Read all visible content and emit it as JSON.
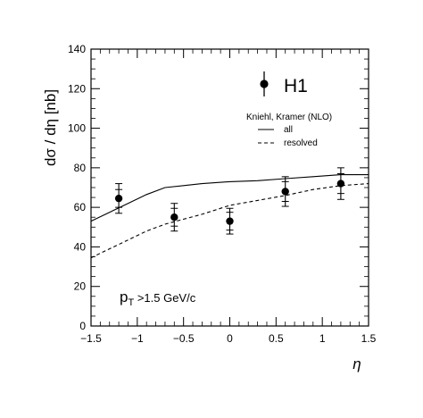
{
  "chart_data": {
    "type": "scatter",
    "xlabel": "η",
    "ylabel": "dσ / dη [nb]",
    "xlim": [
      -1.5,
      1.5
    ],
    "ylim": [
      0,
      140
    ],
    "x_ticks": [
      "−1.5",
      "−1",
      "−0.5",
      "0",
      "0.5",
      "1",
      "1.5"
    ],
    "x_tick_values": [
      -1.5,
      -1,
      -0.5,
      0,
      0.5,
      1,
      1.5
    ],
    "y_ticks": [
      "0",
      "20",
      "40",
      "60",
      "80",
      "100",
      "120",
      "140"
    ],
    "y_tick_values": [
      0,
      20,
      40,
      60,
      80,
      100,
      120,
      140
    ],
    "grid": false,
    "legend": {
      "data_label": "H1",
      "theory_title": "Kniehl, Kramer (NLO)",
      "entries": [
        "all",
        "resolved"
      ],
      "position": "top-right"
    },
    "annotation": "p_T > 1.5 GeV/c",
    "annotation_parts": {
      "main": "p",
      "sub": "T",
      "rest": " >1.5 GeV/c"
    },
    "points": [
      {
        "x": -1.2,
        "y": 64.5,
        "stat": 4.5,
        "tot": 7.5
      },
      {
        "x": -0.6,
        "y": 55,
        "stat": 4.5,
        "tot": 7.0
      },
      {
        "x": 0.0,
        "y": 53,
        "stat": 4.5,
        "tot": 6.5
      },
      {
        "x": 0.6,
        "y": 68,
        "stat": 5.0,
        "tot": 7.5
      },
      {
        "x": 1.2,
        "y": 72,
        "stat": 5.0,
        "tot": 8.0
      }
    ],
    "series": [
      {
        "name": "all",
        "style": "solid",
        "x": [
          -1.5,
          -1.3,
          -1.1,
          -0.9,
          -0.7,
          -0.5,
          -0.3,
          0.0,
          0.3,
          0.6,
          0.9,
          1.2,
          1.5
        ],
        "y": [
          53,
          57.5,
          62,
          66.5,
          70,
          71,
          72,
          73,
          73.5,
          74.5,
          75.5,
          76.5,
          76.5
        ]
      },
      {
        "name": "resolved",
        "style": "dashed",
        "x": [
          -1.5,
          -1.3,
          -1.1,
          -0.9,
          -0.7,
          -0.5,
          -0.3,
          0.0,
          0.3,
          0.6,
          0.9,
          1.2,
          1.5
        ],
        "y": [
          34.5,
          39,
          43.5,
          48,
          51.5,
          54,
          56.5,
          61,
          63.5,
          66,
          69,
          71,
          72
        ]
      }
    ]
  }
}
